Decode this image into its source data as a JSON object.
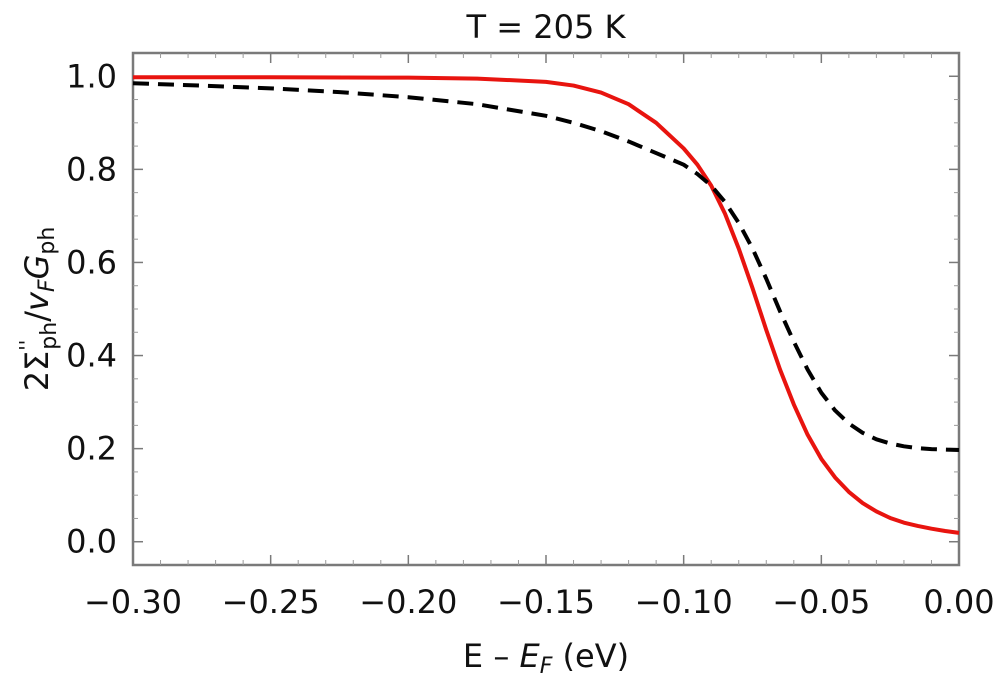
{
  "chart_data": {
    "type": "line",
    "title": "T = 205 K",
    "xlabel": "E – E_F (eV)",
    "ylabel": "2Σ''_ph / v_F G_ph",
    "xlim": [
      -0.3,
      0.0
    ],
    "ylim": [
      -0.05,
      1.05
    ],
    "x_ticks": [
      "−0.30",
      "−0.25",
      "−0.20",
      "−0.15",
      "−0.10",
      "−0.05",
      "0.00"
    ],
    "x_tick_values": [
      -0.3,
      -0.25,
      -0.2,
      -0.15,
      -0.1,
      -0.05,
      0.0
    ],
    "y_ticks": [
      "0.0",
      "0.2",
      "0.4",
      "0.6",
      "0.8",
      "1.0"
    ],
    "y_tick_values": [
      0.0,
      0.2,
      0.4,
      0.6,
      0.8,
      1.0
    ],
    "grid": false,
    "series": [
      {
        "name": "solid",
        "color": "#e8140f",
        "style": "solid",
        "x": [
          -0.3,
          -0.25,
          -0.2,
          -0.175,
          -0.15,
          -0.14,
          -0.13,
          -0.12,
          -0.11,
          -0.1,
          -0.095,
          -0.09,
          -0.085,
          -0.08,
          -0.075,
          -0.07,
          -0.065,
          -0.06,
          -0.055,
          -0.05,
          -0.045,
          -0.04,
          -0.035,
          -0.03,
          -0.025,
          -0.02,
          -0.015,
          -0.01,
          -0.005,
          0.0
        ],
        "y": [
          0.998,
          0.998,
          0.997,
          0.995,
          0.988,
          0.98,
          0.965,
          0.94,
          0.9,
          0.845,
          0.81,
          0.765,
          0.705,
          0.63,
          0.545,
          0.455,
          0.37,
          0.295,
          0.23,
          0.178,
          0.138,
          0.107,
          0.083,
          0.065,
          0.051,
          0.041,
          0.034,
          0.028,
          0.023,
          0.019
        ]
      },
      {
        "name": "dashed",
        "color": "#000000",
        "style": "dashed",
        "x": [
          -0.3,
          -0.275,
          -0.25,
          -0.225,
          -0.2,
          -0.175,
          -0.15,
          -0.14,
          -0.13,
          -0.12,
          -0.11,
          -0.1,
          -0.095,
          -0.09,
          -0.085,
          -0.08,
          -0.075,
          -0.07,
          -0.065,
          -0.06,
          -0.055,
          -0.05,
          -0.045,
          -0.04,
          -0.035,
          -0.03,
          -0.025,
          -0.02,
          -0.015,
          -0.01,
          -0.005,
          0.0
        ],
        "y": [
          0.985,
          0.98,
          0.974,
          0.966,
          0.955,
          0.94,
          0.915,
          0.9,
          0.882,
          0.86,
          0.835,
          0.81,
          0.79,
          0.765,
          0.73,
          0.685,
          0.63,
          0.565,
          0.495,
          0.43,
          0.37,
          0.32,
          0.282,
          0.254,
          0.234,
          0.22,
          0.211,
          0.205,
          0.201,
          0.199,
          0.198,
          0.197
        ]
      }
    ]
  }
}
